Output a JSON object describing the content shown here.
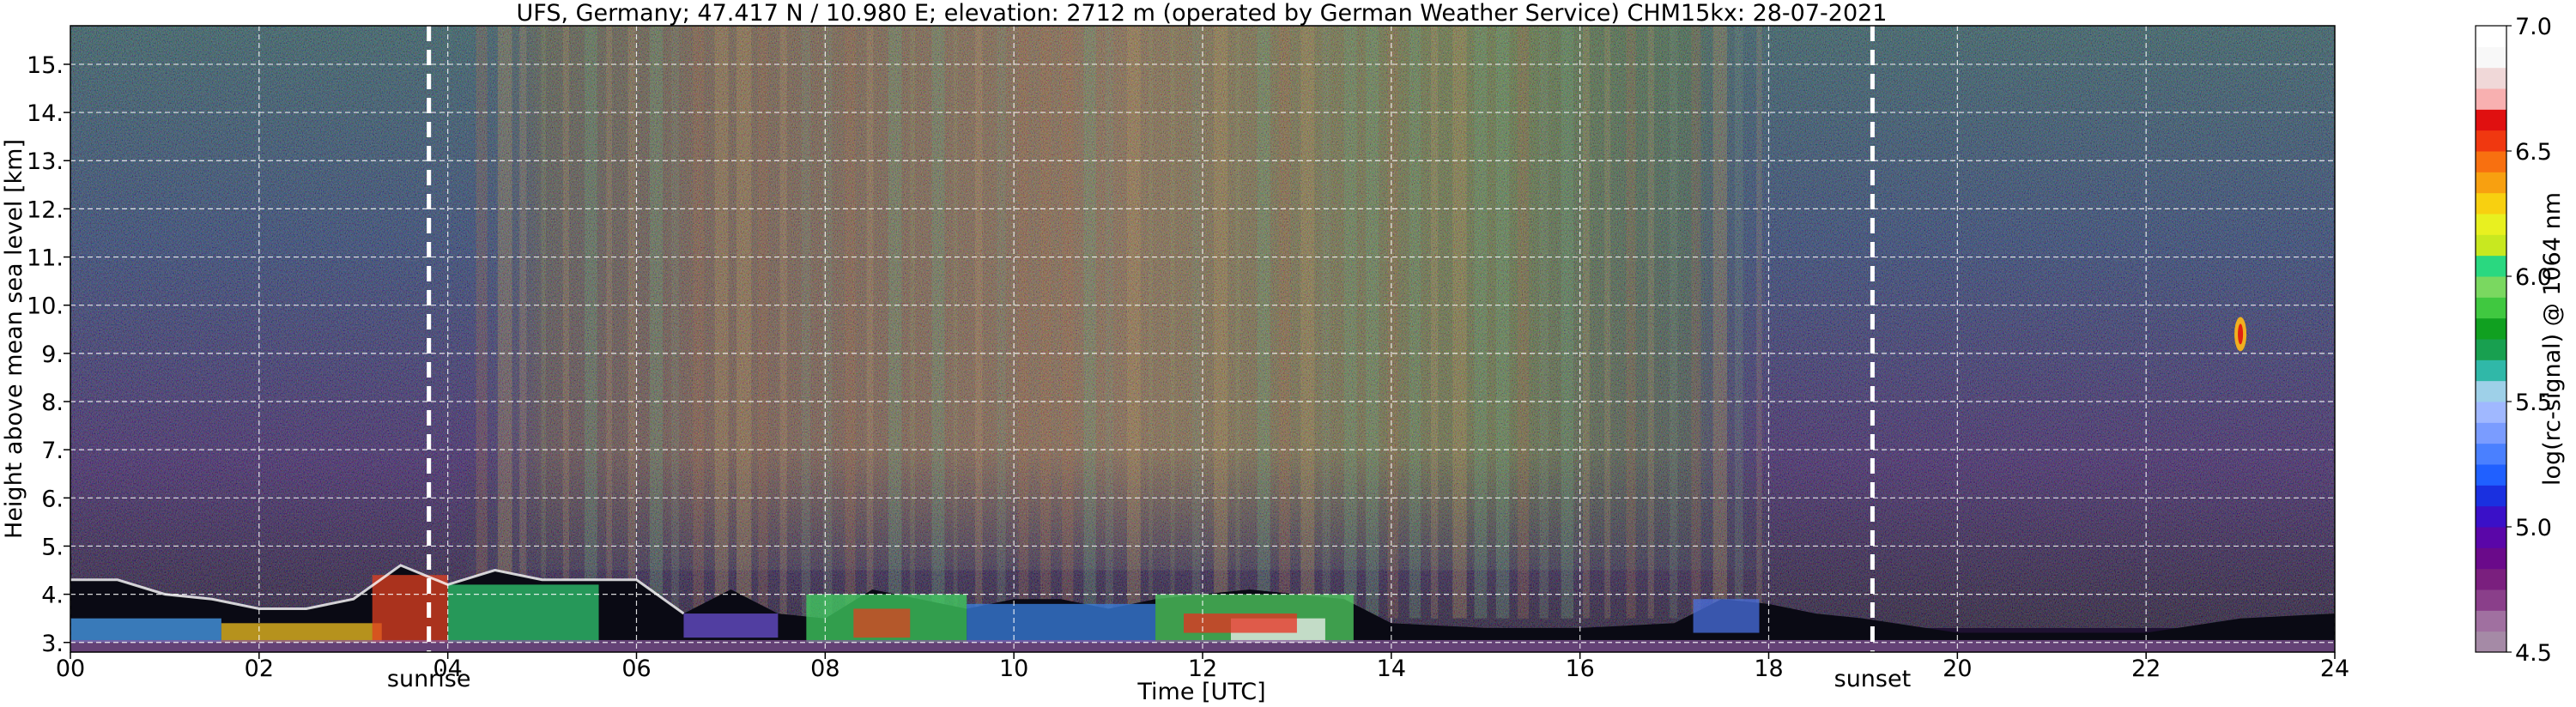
{
  "chart_data": {
    "type": "heatmap",
    "title": "UFS, Germany; 47.417 N / 10.980 E; elevation: 2712 m  (operated by German Weather Service)     CHM15kx: 28-07-2021",
    "xlabel": "Time [UTC]",
    "ylabel": "Height above mean sea level [km]",
    "xlim": [
      0,
      24
    ],
    "ylim": [
      2.8,
      15.8
    ],
    "x_ticks": [
      0,
      2,
      4,
      6,
      8,
      10,
      12,
      14,
      16,
      18,
      20,
      22,
      24
    ],
    "x_tick_labels": [
      "00",
      "02",
      "04",
      "06",
      "08",
      "10",
      "12",
      "14",
      "16",
      "18",
      "20",
      "22",
      "24"
    ],
    "y_ticks": [
      3,
      4,
      5,
      6,
      7,
      8,
      9,
      10,
      11,
      12,
      13,
      14,
      15
    ],
    "y_tick_labels": [
      "3.",
      "4.",
      "5.",
      "6.",
      "7.",
      "8.",
      "9.",
      "10.",
      "11.",
      "12.",
      "13.",
      "14.",
      "15."
    ],
    "grid": true,
    "colorbar": {
      "label": "log(rc-signal) @ 1064 nm",
      "range": [
        4.5,
        7.0
      ],
      "ticks": [
        4.5,
        5.0,
        5.5,
        6.0,
        6.5,
        7.0
      ],
      "tick_labels": [
        "4.5",
        "5.0",
        "5.5",
        "6.0",
        "6.5",
        "7.0"
      ],
      "colors": [
        "#a58aa6",
        "#a070a0",
        "#8a3f8a",
        "#7a1f7e",
        "#6a0a8a",
        "#5a06a8",
        "#3a10c8",
        "#1a30e0",
        "#2060ff",
        "#4a80ff",
        "#7a9cff",
        "#a0b8ff",
        "#9ed0e8",
        "#30b8a8",
        "#18a050",
        "#10a020",
        "#40c840",
        "#7ad860",
        "#2ad880",
        "#c8e820",
        "#e8f020",
        "#f8d010",
        "#f8a010",
        "#f87010",
        "#f03810",
        "#e01010",
        "#f8b0b0",
        "#f0d8d8",
        "#f8f8f8",
        "#ffffff"
      ]
    },
    "events": [
      {
        "name": "sunrise",
        "x": 3.8
      },
      {
        "name": "sunset",
        "x": 19.1
      }
    ],
    "features": {
      "boundary_layer_top_km": [
        [
          0.0,
          4.3
        ],
        [
          0.5,
          4.3
        ],
        [
          1.0,
          4.0
        ],
        [
          1.5,
          3.9
        ],
        [
          2.0,
          3.7
        ],
        [
          2.5,
          3.7
        ],
        [
          3.0,
          3.9
        ],
        [
          3.5,
          4.6
        ],
        [
          4.0,
          4.2
        ],
        [
          4.5,
          4.5
        ],
        [
          5.0,
          4.3
        ],
        [
          5.5,
          4.3
        ],
        [
          6.0,
          4.3
        ],
        [
          6.5,
          3.6
        ],
        [
          7.0,
          4.1
        ],
        [
          7.5,
          3.6
        ],
        [
          8.0,
          3.5
        ],
        [
          8.5,
          4.1
        ],
        [
          9.0,
          3.9
        ],
        [
          9.5,
          3.7
        ],
        [
          10.0,
          3.9
        ],
        [
          10.5,
          3.9
        ],
        [
          11.0,
          3.7
        ],
        [
          11.5,
          3.9
        ],
        [
          12.0,
          4.0
        ],
        [
          12.5,
          4.1
        ],
        [
          13.0,
          4.0
        ],
        [
          13.5,
          3.9
        ],
        [
          14.0,
          3.4
        ],
        [
          15.0,
          3.3
        ],
        [
          16.0,
          3.3
        ],
        [
          17.0,
          3.4
        ],
        [
          17.5,
          3.9
        ],
        [
          18.0,
          3.8
        ],
        [
          18.5,
          3.6
        ],
        [
          19.0,
          3.5
        ],
        [
          20.0,
          3.2
        ],
        [
          21.0,
          3.2
        ],
        [
          22.0,
          3.2
        ],
        [
          23.0,
          3.5
        ],
        [
          24.0,
          3.6
        ]
      ],
      "noise_warm_window_h": [
        4.2,
        18.0
      ],
      "cirrus_patch": {
        "x": 23.0,
        "y": 9.4
      }
    }
  }
}
